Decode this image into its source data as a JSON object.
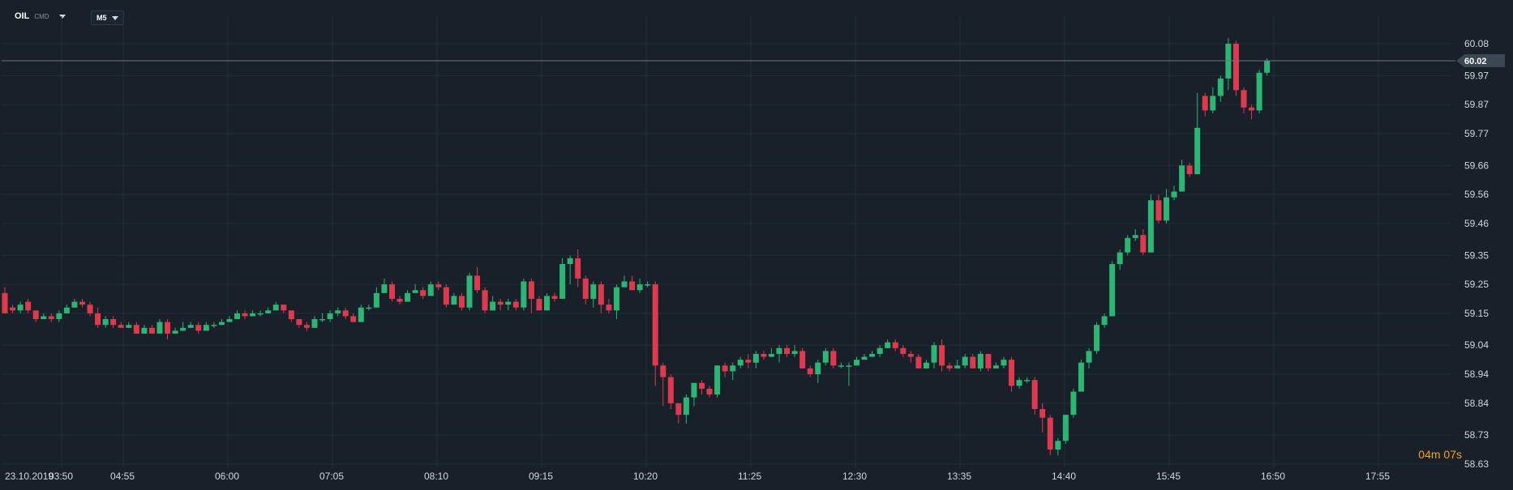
{
  "header": {
    "symbol": "OIL",
    "symbol_type": "CMD",
    "timeframe": "M5"
  },
  "colors": {
    "background": "#18212a",
    "grid": "#222d37",
    "bull": "#2bb673",
    "bear": "#e0394e",
    "current_line": "#6a747e",
    "countdown": "#f0a32a"
  },
  "countdown": {
    "minutes": "04",
    "minutes_unit": "m",
    "seconds": "07",
    "seconds_unit": "s"
  },
  "current_price": "60.02",
  "chart_data": {
    "type": "candlestick",
    "y_ticks": [
      "60.08",
      "59.97",
      "59.87",
      "59.77",
      "59.66",
      "59.56",
      "59.46",
      "59.35",
      "59.25",
      "59.15",
      "59.04",
      "58.94",
      "58.84",
      "58.73",
      "58.63"
    ],
    "y_tick_values": [
      60.08,
      59.97,
      59.87,
      59.77,
      59.66,
      59.56,
      59.46,
      59.35,
      59.25,
      59.15,
      59.04,
      58.94,
      58.84,
      58.73,
      58.63
    ],
    "ylim": [
      58.63,
      60.08
    ],
    "x_date_label": "23.10.2019",
    "x_ticks": [
      "03:50",
      "04:55",
      "06:00",
      "07:05",
      "08:10",
      "09:15",
      "10:20",
      "11:25",
      "12:30",
      "13:35",
      "14:40",
      "15:45",
      "16:50",
      "17:55"
    ],
    "grid": true,
    "candles": [
      [
        59.22,
        59.15,
        59.24,
        59.15
      ],
      [
        59.17,
        59.16,
        59.18,
        59.15
      ],
      [
        59.16,
        59.18,
        59.19,
        59.15
      ],
      [
        59.19,
        59.16,
        59.2,
        59.15
      ],
      [
        59.16,
        59.13,
        59.16,
        59.12
      ],
      [
        59.13,
        59.14,
        59.15,
        59.13
      ],
      [
        59.14,
        59.13,
        59.15,
        59.12
      ],
      [
        59.13,
        59.15,
        59.16,
        59.12
      ],
      [
        59.15,
        59.17,
        59.18,
        59.15
      ],
      [
        59.17,
        59.19,
        59.2,
        59.17
      ],
      [
        59.19,
        59.18,
        59.2,
        59.17
      ],
      [
        59.18,
        59.15,
        59.19,
        59.14
      ],
      [
        59.15,
        59.11,
        59.17,
        59.1
      ],
      [
        59.11,
        59.13,
        59.14,
        59.1
      ],
      [
        59.13,
        59.11,
        59.14,
        59.1
      ],
      [
        59.11,
        59.1,
        59.12,
        59.1
      ],
      [
        59.1,
        59.11,
        59.12,
        59.1
      ],
      [
        59.11,
        59.08,
        59.12,
        59.08
      ],
      [
        59.08,
        59.1,
        59.11,
        59.08
      ],
      [
        59.1,
        59.08,
        59.11,
        59.08
      ],
      [
        59.08,
        59.12,
        59.13,
        59.08
      ],
      [
        59.12,
        59.08,
        59.13,
        59.06
      ],
      [
        59.08,
        59.09,
        59.1,
        59.08
      ],
      [
        59.09,
        59.1,
        59.12,
        59.09
      ],
      [
        59.1,
        59.11,
        59.12,
        59.1
      ],
      [
        59.11,
        59.09,
        59.12,
        59.08
      ],
      [
        59.09,
        59.11,
        59.12,
        59.09
      ],
      [
        59.11,
        59.11,
        59.12,
        59.1
      ],
      [
        59.11,
        59.12,
        59.13,
        59.11
      ],
      [
        59.12,
        59.13,
        59.14,
        59.12
      ],
      [
        59.13,
        59.15,
        59.16,
        59.13
      ],
      [
        59.15,
        59.14,
        59.16,
        59.13
      ],
      [
        59.14,
        59.15,
        59.16,
        59.14
      ],
      [
        59.15,
        59.15,
        59.16,
        59.14
      ],
      [
        59.15,
        59.16,
        59.17,
        59.15
      ],
      [
        59.16,
        59.18,
        59.19,
        59.16
      ],
      [
        59.18,
        59.16,
        59.18,
        59.15
      ],
      [
        59.16,
        59.13,
        59.16,
        59.12
      ],
      [
        59.13,
        59.11,
        59.13,
        59.1
      ],
      [
        59.11,
        59.1,
        59.12,
        59.09
      ],
      [
        59.1,
        59.13,
        59.14,
        59.1
      ],
      [
        59.13,
        59.13,
        59.15,
        59.12
      ],
      [
        59.13,
        59.15,
        59.16,
        59.12
      ],
      [
        59.15,
        59.16,
        59.17,
        59.14
      ],
      [
        59.16,
        59.14,
        59.17,
        59.13
      ],
      [
        59.14,
        59.12,
        59.15,
        59.12
      ],
      [
        59.12,
        59.17,
        59.18,
        59.12
      ],
      [
        59.17,
        59.17,
        59.18,
        59.16
      ],
      [
        59.17,
        59.22,
        59.24,
        59.17
      ],
      [
        59.22,
        59.25,
        59.27,
        59.22
      ],
      [
        59.25,
        59.2,
        59.26,
        59.19
      ],
      [
        59.2,
        59.19,
        59.21,
        59.18
      ],
      [
        59.19,
        59.22,
        59.23,
        59.19
      ],
      [
        59.22,
        59.23,
        59.25,
        59.22
      ],
      [
        59.23,
        59.21,
        59.24,
        59.2
      ],
      [
        59.21,
        59.25,
        59.26,
        59.21
      ],
      [
        59.25,
        59.24,
        59.26,
        59.23
      ],
      [
        59.24,
        59.18,
        59.25,
        59.17
      ],
      [
        59.18,
        59.21,
        59.22,
        59.18
      ],
      [
        59.21,
        59.17,
        59.22,
        59.16
      ],
      [
        59.17,
        59.28,
        59.29,
        59.16
      ],
      [
        59.28,
        59.23,
        59.31,
        59.22
      ],
      [
        59.23,
        59.16,
        59.24,
        59.15
      ],
      [
        59.16,
        59.19,
        59.21,
        59.16
      ],
      [
        59.19,
        59.18,
        59.2,
        59.16
      ],
      [
        59.18,
        59.19,
        59.2,
        59.16
      ],
      [
        59.19,
        59.17,
        59.2,
        59.16
      ],
      [
        59.17,
        59.26,
        59.27,
        59.16
      ],
      [
        59.26,
        59.2,
        59.27,
        59.15
      ],
      [
        59.2,
        59.16,
        59.21,
        59.16
      ],
      [
        59.16,
        59.21,
        59.22,
        59.16
      ],
      [
        59.21,
        59.2,
        59.22,
        59.19
      ],
      [
        59.2,
        59.32,
        59.34,
        59.2
      ],
      [
        59.32,
        59.34,
        59.35,
        59.25
      ],
      [
        59.34,
        59.27,
        59.37,
        59.24
      ],
      [
        59.27,
        59.2,
        59.28,
        59.18
      ],
      [
        59.2,
        59.25,
        59.26,
        59.17
      ],
      [
        59.25,
        59.18,
        59.26,
        59.15
      ],
      [
        59.18,
        59.16,
        59.2,
        59.15
      ],
      [
        59.16,
        59.24,
        59.25,
        59.13
      ],
      [
        59.24,
        59.26,
        59.28,
        59.24
      ],
      [
        59.26,
        59.23,
        59.28,
        59.23
      ],
      [
        59.23,
        59.25,
        59.27,
        59.22
      ],
      [
        59.25,
        59.25,
        59.26,
        59.24
      ],
      [
        59.25,
        58.97,
        59.26,
        58.9
      ],
      [
        58.97,
        58.93,
        58.98,
        58.83
      ],
      [
        58.93,
        58.84,
        58.94,
        58.82
      ],
      [
        58.84,
        58.8,
        58.84,
        58.77
      ],
      [
        58.8,
        58.86,
        58.87,
        58.77
      ],
      [
        58.86,
        58.91,
        58.91,
        58.83
      ],
      [
        58.91,
        58.89,
        58.92,
        58.87
      ],
      [
        58.89,
        58.87,
        58.9,
        58.86
      ],
      [
        58.87,
        58.97,
        58.97,
        58.86
      ],
      [
        58.97,
        58.95,
        58.98,
        58.93
      ],
      [
        58.95,
        58.97,
        58.98,
        58.92
      ],
      [
        58.97,
        58.99,
        59.0,
        58.96
      ],
      [
        58.99,
        58.98,
        59.01,
        58.96
      ],
      [
        58.98,
        59.01,
        59.02,
        58.96
      ],
      [
        59.01,
        59.0,
        59.02,
        58.99
      ],
      [
        59.0,
        59.01,
        59.03,
        59.0
      ],
      [
        59.01,
        59.03,
        59.04,
        58.98
      ],
      [
        59.03,
        59.01,
        59.04,
        59.0
      ],
      [
        59.01,
        59.02,
        59.04,
        59.0
      ],
      [
        59.02,
        58.96,
        59.03,
        58.96
      ],
      [
        58.96,
        58.94,
        58.97,
        58.93
      ],
      [
        58.94,
        58.98,
        58.99,
        58.91
      ],
      [
        58.98,
        59.02,
        59.03,
        58.97
      ],
      [
        59.02,
        58.97,
        59.03,
        58.96
      ],
      [
        58.97,
        58.97,
        58.98,
        58.96
      ],
      [
        58.97,
        58.97,
        58.98,
        58.9
      ],
      [
        58.97,
        58.99,
        59.0,
        58.97
      ],
      [
        58.99,
        59.0,
        59.01,
        58.99
      ],
      [
        59.0,
        59.01,
        59.02,
        59.0
      ],
      [
        59.01,
        59.03,
        59.04,
        59.0
      ],
      [
        59.03,
        59.05,
        59.06,
        59.03
      ],
      [
        59.05,
        59.03,
        59.06,
        59.02
      ],
      [
        59.03,
        59.01,
        59.04,
        59.0
      ],
      [
        59.01,
        59.0,
        59.02,
        58.98
      ],
      [
        59.0,
        58.96,
        59.01,
        58.96
      ],
      [
        58.96,
        58.98,
        58.99,
        58.96
      ],
      [
        58.98,
        59.04,
        59.05,
        58.96
      ],
      [
        59.04,
        58.97,
        59.06,
        58.95
      ],
      [
        58.97,
        58.96,
        58.98,
        58.95
      ],
      [
        58.96,
        58.97,
        58.99,
        58.96
      ],
      [
        58.97,
        59.0,
        59.01,
        58.96
      ],
      [
        59.0,
        58.96,
        59.01,
        58.96
      ],
      [
        58.96,
        59.01,
        59.02,
        58.95
      ],
      [
        59.01,
        58.96,
        59.01,
        58.95
      ],
      [
        58.96,
        58.97,
        58.98,
        58.96
      ],
      [
        58.97,
        58.99,
        59.0,
        58.96
      ],
      [
        58.99,
        58.9,
        59.0,
        58.88
      ],
      [
        58.9,
        58.92,
        58.93,
        58.89
      ],
      [
        58.92,
        58.92,
        58.93,
        58.91
      ],
      [
        58.92,
        58.82,
        58.93,
        58.8
      ],
      [
        58.82,
        58.79,
        58.84,
        58.74
      ],
      [
        58.79,
        58.68,
        58.8,
        58.66
      ],
      [
        58.68,
        58.71,
        58.72,
        58.66
      ],
      [
        58.71,
        58.8,
        58.8,
        58.7
      ],
      [
        58.8,
        58.88,
        58.89,
        58.79
      ],
      [
        58.88,
        58.98,
        58.99,
        58.88
      ],
      [
        58.98,
        59.02,
        59.03,
        58.96
      ],
      [
        59.02,
        59.11,
        59.12,
        59.01
      ],
      [
        59.11,
        59.14,
        59.15,
        59.1
      ],
      [
        59.14,
        59.32,
        59.33,
        59.14
      ],
      [
        59.32,
        59.36,
        59.37,
        59.3
      ],
      [
        59.36,
        59.41,
        59.42,
        59.35
      ],
      [
        59.41,
        59.42,
        59.44,
        59.4
      ],
      [
        59.42,
        59.36,
        59.44,
        59.35
      ],
      [
        59.36,
        59.54,
        59.56,
        59.36
      ],
      [
        59.54,
        59.47,
        59.56,
        59.46
      ],
      [
        59.47,
        59.55,
        59.58,
        59.46
      ],
      [
        59.55,
        59.57,
        59.59,
        59.54
      ],
      [
        59.57,
        59.66,
        59.68,
        59.57
      ],
      [
        59.66,
        59.63,
        59.67,
        59.62
      ],
      [
        59.63,
        59.79,
        59.91,
        59.76
      ],
      [
        59.9,
        59.85,
        59.91,
        59.83
      ],
      [
        59.85,
        59.9,
        59.93,
        59.84
      ],
      [
        59.9,
        59.96,
        59.97,
        59.88
      ],
      [
        59.96,
        60.08,
        60.1,
        59.92
      ],
      [
        60.08,
        59.92,
        60.09,
        59.9
      ],
      [
        59.92,
        59.86,
        59.93,
        59.84
      ],
      [
        59.86,
        59.85,
        59.87,
        59.82
      ],
      [
        59.85,
        59.98,
        59.99,
        59.84
      ],
      [
        59.98,
        60.02,
        60.03,
        59.97
      ]
    ]
  }
}
